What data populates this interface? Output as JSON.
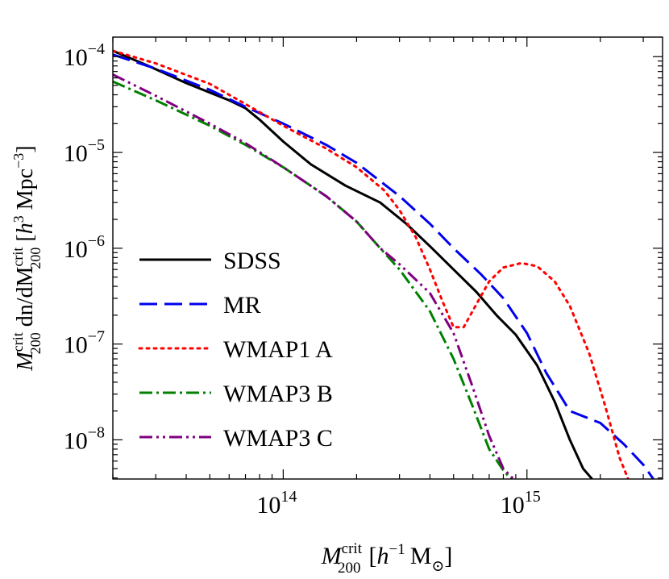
{
  "chart_data": {
    "type": "line",
    "title": "",
    "xlabel": {
      "base": "M",
      "sub": "200",
      "sup": "crit",
      "unit_open": "[",
      "unit_h": "h",
      "unit_exp": "−1",
      "unit_m": "M",
      "unit_sun": "⊙",
      "unit_close": "]"
    },
    "ylabel": {
      "base": "M",
      "sub": "200",
      "sup": "crit",
      "mid": " dn/dM",
      "sub2": "200",
      "sup2": "crit",
      "unit_open": " [",
      "unit_h": "h",
      "unit_exp": "3",
      "unit_mpc": " Mpc",
      "unit_exp2": "−3",
      "unit_close": "]"
    },
    "xscale": "log",
    "yscale": "log",
    "xlim": [
      20000000000000.0,
      3600000000000000.0
    ],
    "ylim": [
      3.9e-09,
      0.00016
    ],
    "x_ticks": [
      {
        "value": 100000000000000.0,
        "base": "10",
        "exp": "14"
      },
      {
        "value": 1000000000000000.0,
        "base": "10",
        "exp": "15"
      }
    ],
    "y_ticks": [
      {
        "value": 0.0001,
        "base": "10",
        "exp": "−4"
      },
      {
        "value": 1e-05,
        "base": "10",
        "exp": "−5"
      },
      {
        "value": 1e-06,
        "base": "10",
        "exp": "−6"
      },
      {
        "value": 1e-07,
        "base": "10",
        "exp": "−7"
      },
      {
        "value": 1e-08,
        "base": "10",
        "exp": "−8"
      }
    ],
    "legend_position": "lower-left",
    "series": [
      {
        "name": "SDSS",
        "color": "#000000",
        "style": "solid",
        "x": [
          20000000000000.0,
          28000000000000.0,
          40000000000000.0,
          60000000000000.0,
          70000000000000.0,
          80000000000000.0,
          100000000000000.0,
          130000000000000.0,
          180000000000000.0,
          250000000000000.0,
          320000000000000.0,
          400000000000000.0,
          500000000000000.0,
          620000000000000.0,
          750000000000000.0,
          900000000000000.0,
          1100000000000000.0,
          1300000000000000.0,
          1500000000000000.0,
          1700000000000000.0,
          1850000000000000.0
        ],
        "y": [
          0.000115,
          8e-05,
          5.3e-05,
          3.5e-05,
          2.9e-05,
          2.2e-05,
          1.3e-05,
          7.5e-06,
          4.5e-06,
          3e-06,
          1.8e-06,
          1.05e-06,
          6e-07,
          3.5e-07,
          2e-07,
          1.25e-07,
          6e-08,
          2.5e-08,
          1e-08,
          5e-09,
          3.9e-09
        ]
      },
      {
        "name": "MR",
        "color": "#0000ee",
        "style": "dashed",
        "x": [
          20000000000000.0,
          30000000000000.0,
          50000000000000.0,
          70000000000000.0,
          100000000000000.0,
          150000000000000.0,
          200000000000000.0,
          300000000000000.0,
          400000000000000.0,
          500000000000000.0,
          650000000000000.0,
          800000000000000.0,
          1000000000000000.0,
          1200000000000000.0,
          1500000000000000.0,
          2000000000000000.0,
          2500000000000000.0,
          3000000000000000.0,
          3300000000000000.0
        ],
        "y": [
          0.000105,
          7.5e-05,
          4.5e-05,
          3e-05,
          2e-05,
          1.2e-05,
          7.8e-06,
          3.5e-06,
          1.8e-06,
          1e-06,
          5.3e-07,
          3e-07,
          1.3e-07,
          5e-08,
          2e-08,
          1.5e-08,
          9e-09,
          5.5e-09,
          3.9e-09
        ]
      },
      {
        "name": "WMAP1 A",
        "color": "#ff0000",
        "style": "dotted",
        "x": [
          20000000000000.0,
          30000000000000.0,
          50000000000000.0,
          70000000000000.0,
          100000000000000.0,
          150000000000000.0,
          200000000000000.0,
          260000000000000.0,
          300000000000000.0,
          350000000000000.0,
          400000000000000.0,
          450000000000000.0,
          500000000000000.0,
          550000000000000.0,
          620000000000000.0,
          700000000000000.0,
          800000000000000.0,
          950000000000000.0,
          1100000000000000.0,
          1300000000000000.0,
          1500000000000000.0,
          1800000000000000.0,
          2100000000000000.0,
          2400000000000000.0,
          2600000000000000.0
        ],
        "y": [
          0.000115,
          8.5e-05,
          5.2e-05,
          3.2e-05,
          1.9e-05,
          1.1e-05,
          7e-06,
          4e-06,
          2.5e-06,
          1.3e-06,
          6e-07,
          2.8e-07,
          1.5e-07,
          1.5e-07,
          2.6e-07,
          4.5e-07,
          6.3e-07,
          7e-07,
          6.5e-07,
          4.5e-07,
          2.5e-07,
          8e-08,
          2.2e-08,
          6.5e-09,
          3.9e-09
        ]
      },
      {
        "name": "WMAP3 B",
        "color": "#008000",
        "style": "dash-dot",
        "x": [
          20000000000000.0,
          30000000000000.0,
          50000000000000.0,
          70000000000000.0,
          100000000000000.0,
          150000000000000.0,
          200000000000000.0,
          250000000000000.0,
          300000000000000.0,
          400000000000000.0,
          500000000000000.0,
          600000000000000.0,
          700000000000000.0,
          800000000000000.0,
          860000000000000.0
        ],
        "y": [
          5.5e-05,
          3.5e-05,
          1.9e-05,
          1.2e-05,
          7e-06,
          3.5e-06,
          1.9e-06,
          1e-06,
          6e-07,
          2.2e-07,
          7e-08,
          2.2e-08,
          8e-09,
          4.8e-09,
          3.9e-09
        ]
      },
      {
        "name": "WMAP3 C",
        "color": "#800080",
        "style": "dash-dot-dot",
        "x": [
          20000000000000.0,
          30000000000000.0,
          50000000000000.0,
          70000000000000.0,
          100000000000000.0,
          150000000000000.0,
          200000000000000.0,
          250000000000000.0,
          300000000000000.0,
          400000000000000.0,
          500000000000000.0,
          600000000000000.0,
          700000000000000.0,
          800000000000000.0,
          880000000000000.0
        ],
        "y": [
          6.5e-05,
          3.9e-05,
          2e-05,
          1.25e-05,
          7e-06,
          3.5e-06,
          1.9e-06,
          1e-06,
          6.8e-07,
          3.4e-07,
          1.3e-07,
          3.5e-08,
          1.1e-08,
          5e-09,
          3.9e-09
        ]
      }
    ]
  }
}
